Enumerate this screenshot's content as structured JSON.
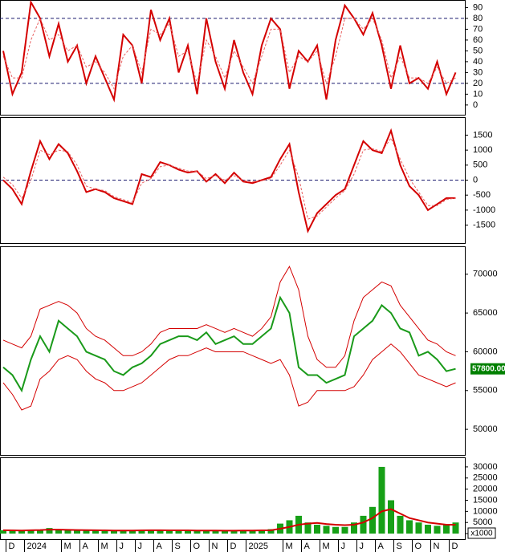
{
  "chart_data": [
    {
      "type": "line",
      "ylim": [
        -9,
        97
      ],
      "yticks": [
        0,
        10,
        20,
        30,
        40,
        50,
        60,
        70,
        80,
        90
      ],
      "levels": [
        20,
        80
      ],
      "series": [
        {
          "color": "#d40000",
          "style": "solid",
          "values": [
            50,
            10,
            30,
            95,
            80,
            45,
            75,
            40,
            55,
            20,
            45,
            25,
            5,
            65,
            55,
            20,
            88,
            60,
            80,
            30,
            55,
            10,
            80,
            40,
            15,
            60,
            30,
            10,
            55,
            80,
            70,
            15,
            50,
            40,
            55,
            5,
            60,
            92,
            80,
            65,
            85,
            55,
            15,
            55,
            20,
            25,
            15,
            40,
            10,
            30
          ]
        },
        {
          "color": "#e86060",
          "style": "dashed",
          "values": [
            45,
            25,
            25,
            60,
            80,
            60,
            65,
            50,
            55,
            35,
            40,
            30,
            15,
            45,
            55,
            30,
            70,
            65,
            75,
            45,
            50,
            20,
            60,
            45,
            25,
            50,
            35,
            20,
            45,
            70,
            70,
            30,
            45,
            40,
            50,
            20,
            45,
            80,
            80,
            70,
            80,
            60,
            25,
            45,
            25,
            25,
            20,
            35,
            20,
            25
          ]
        }
      ]
    },
    {
      "type": "line",
      "ylim": [
        -2100,
        2100
      ],
      "yticks": [
        -1500,
        -1000,
        -500,
        0,
        500,
        1000,
        1500
      ],
      "levels": [
        0
      ],
      "series": [
        {
          "color": "#d40000",
          "style": "solid",
          "values": [
            0,
            -300,
            -800,
            300,
            1300,
            700,
            1200,
            900,
            300,
            -400,
            -300,
            -400,
            -600,
            -700,
            -800,
            200,
            100,
            600,
            500,
            350,
            250,
            300,
            -50,
            200,
            -100,
            250,
            -50,
            -100,
            0,
            100,
            700,
            1200,
            -400,
            -1700,
            -1100,
            -800,
            -500,
            -300,
            500,
            1300,
            1000,
            900,
            1650,
            500,
            -200,
            -500,
            -1000,
            -800,
            -600,
            -600
          ]
        },
        {
          "color": "#e86060",
          "style": "dashed",
          "values": [
            100,
            -150,
            -600,
            0,
            1000,
            850,
            1000,
            950,
            500,
            -200,
            -300,
            -350,
            -550,
            -650,
            -750,
            -100,
            50,
            450,
            500,
            400,
            300,
            300,
            50,
            150,
            0,
            150,
            0,
            -50,
            -20,
            50,
            500,
            1000,
            100,
            -1300,
            -1200,
            -900,
            -600,
            -350,
            200,
            1000,
            1050,
            950,
            1400,
            700,
            50,
            -400,
            -850,
            -850,
            -650,
            -600
          ]
        }
      ]
    },
    {
      "type": "line",
      "ylim": [
        46700,
        73600
      ],
      "yticks": [
        50000,
        55000,
        60000,
        65000,
        70000
      ],
      "last_label": {
        "value": 57800,
        "label": "57800.00"
      },
      "series": [
        {
          "color": "#1a9a1a",
          "style": "solid",
          "values": [
            58000,
            57000,
            55000,
            59000,
            62000,
            60000,
            64000,
            63000,
            62000,
            60000,
            59500,
            59000,
            57500,
            57000,
            58000,
            58500,
            59500,
            61000,
            61500,
            62000,
            62000,
            61500,
            62500,
            61000,
            61500,
            62000,
            61000,
            61000,
            62000,
            63000,
            67000,
            65000,
            58000,
            57000,
            57000,
            56000,
            56500,
            57000,
            62000,
            63000,
            64000,
            66000,
            65000,
            63000,
            62500,
            59500,
            60000,
            59000,
            57500,
            57800
          ]
        },
        {
          "color": "#d40000",
          "style": "thin",
          "values": [
            61500,
            61000,
            60500,
            62000,
            65500,
            66000,
            66500,
            66000,
            65000,
            63000,
            62000,
            61500,
            60500,
            59500,
            59500,
            60000,
            61000,
            62500,
            63000,
            63000,
            63000,
            63000,
            63500,
            63000,
            62500,
            63000,
            62500,
            62000,
            63000,
            64500,
            69000,
            71000,
            68000,
            62000,
            59000,
            58000,
            58000,
            59500,
            64000,
            67000,
            68000,
            69000,
            68500,
            66000,
            64500,
            63000,
            61500,
            61000,
            60000,
            59500
          ]
        },
        {
          "color": "#d40000",
          "style": "thin",
          "values": [
            56000,
            54500,
            52500,
            53000,
            56500,
            57500,
            59000,
            59500,
            59000,
            57500,
            56500,
            56000,
            55000,
            55000,
            55500,
            56000,
            57000,
            58000,
            59000,
            59500,
            59500,
            60000,
            60500,
            60000,
            60000,
            60000,
            60000,
            59500,
            59000,
            58500,
            59000,
            57000,
            53000,
            53500,
            55000,
            55000,
            55000,
            55000,
            55500,
            57000,
            59000,
            60000,
            61000,
            60000,
            58500,
            57000,
            56500,
            56000,
            55500,
            56000
          ]
        }
      ]
    },
    {
      "type": "bar",
      "ylim": [
        -2500,
        34300
      ],
      "yticks": [
        0,
        5000,
        10000,
        15000,
        20000,
        25000,
        30000
      ],
      "unit_label": "x1000",
      "categories": [
        null,
        "D",
        null,
        "2024",
        null,
        null,
        null,
        "M",
        null,
        "A",
        null,
        "M",
        null,
        "J",
        null,
        "J",
        null,
        "A",
        null,
        "S",
        null,
        "O",
        null,
        "N",
        null,
        "D",
        null,
        "2025",
        null,
        null,
        null,
        "M",
        null,
        "A",
        null,
        "M",
        null,
        "J",
        null,
        "J",
        null,
        "A",
        null,
        "S",
        null,
        "O",
        null,
        "N",
        null,
        "D"
      ],
      "series": [
        {
          "color": "#17a017",
          "style": "bar",
          "values": [
            1500,
            1200,
            1300,
            1800,
            1500,
            2500,
            1500,
            1600,
            1400,
            1500,
            1300,
            1200,
            1500,
            1400,
            1300,
            1600,
            1500,
            1400,
            1300,
            1500,
            1400,
            1300,
            1500,
            1200,
            1300,
            1400,
            1500,
            1400,
            1600,
            2000,
            4500,
            6000,
            8000,
            5000,
            4000,
            3500,
            3000,
            3000,
            5000,
            8000,
            12000,
            30000,
            15000,
            8000,
            6000,
            5000,
            4000,
            3500,
            4000,
            5000
          ]
        },
        {
          "color": "#d40000",
          "style": "solid",
          "values": [
            1500,
            1450,
            1400,
            1500,
            1600,
            1800,
            1800,
            1700,
            1600,
            1550,
            1500,
            1450,
            1400,
            1400,
            1400,
            1450,
            1500,
            1500,
            1450,
            1450,
            1450,
            1400,
            1400,
            1400,
            1350,
            1350,
            1400,
            1400,
            1450,
            1500,
            2200,
            3000,
            4000,
            4500,
            4800,
            4300,
            4000,
            3800,
            4000,
            5000,
            7000,
            10000,
            11000,
            9000,
            7000,
            6000,
            5000,
            4500,
            4000,
            4000
          ]
        }
      ]
    }
  ]
}
